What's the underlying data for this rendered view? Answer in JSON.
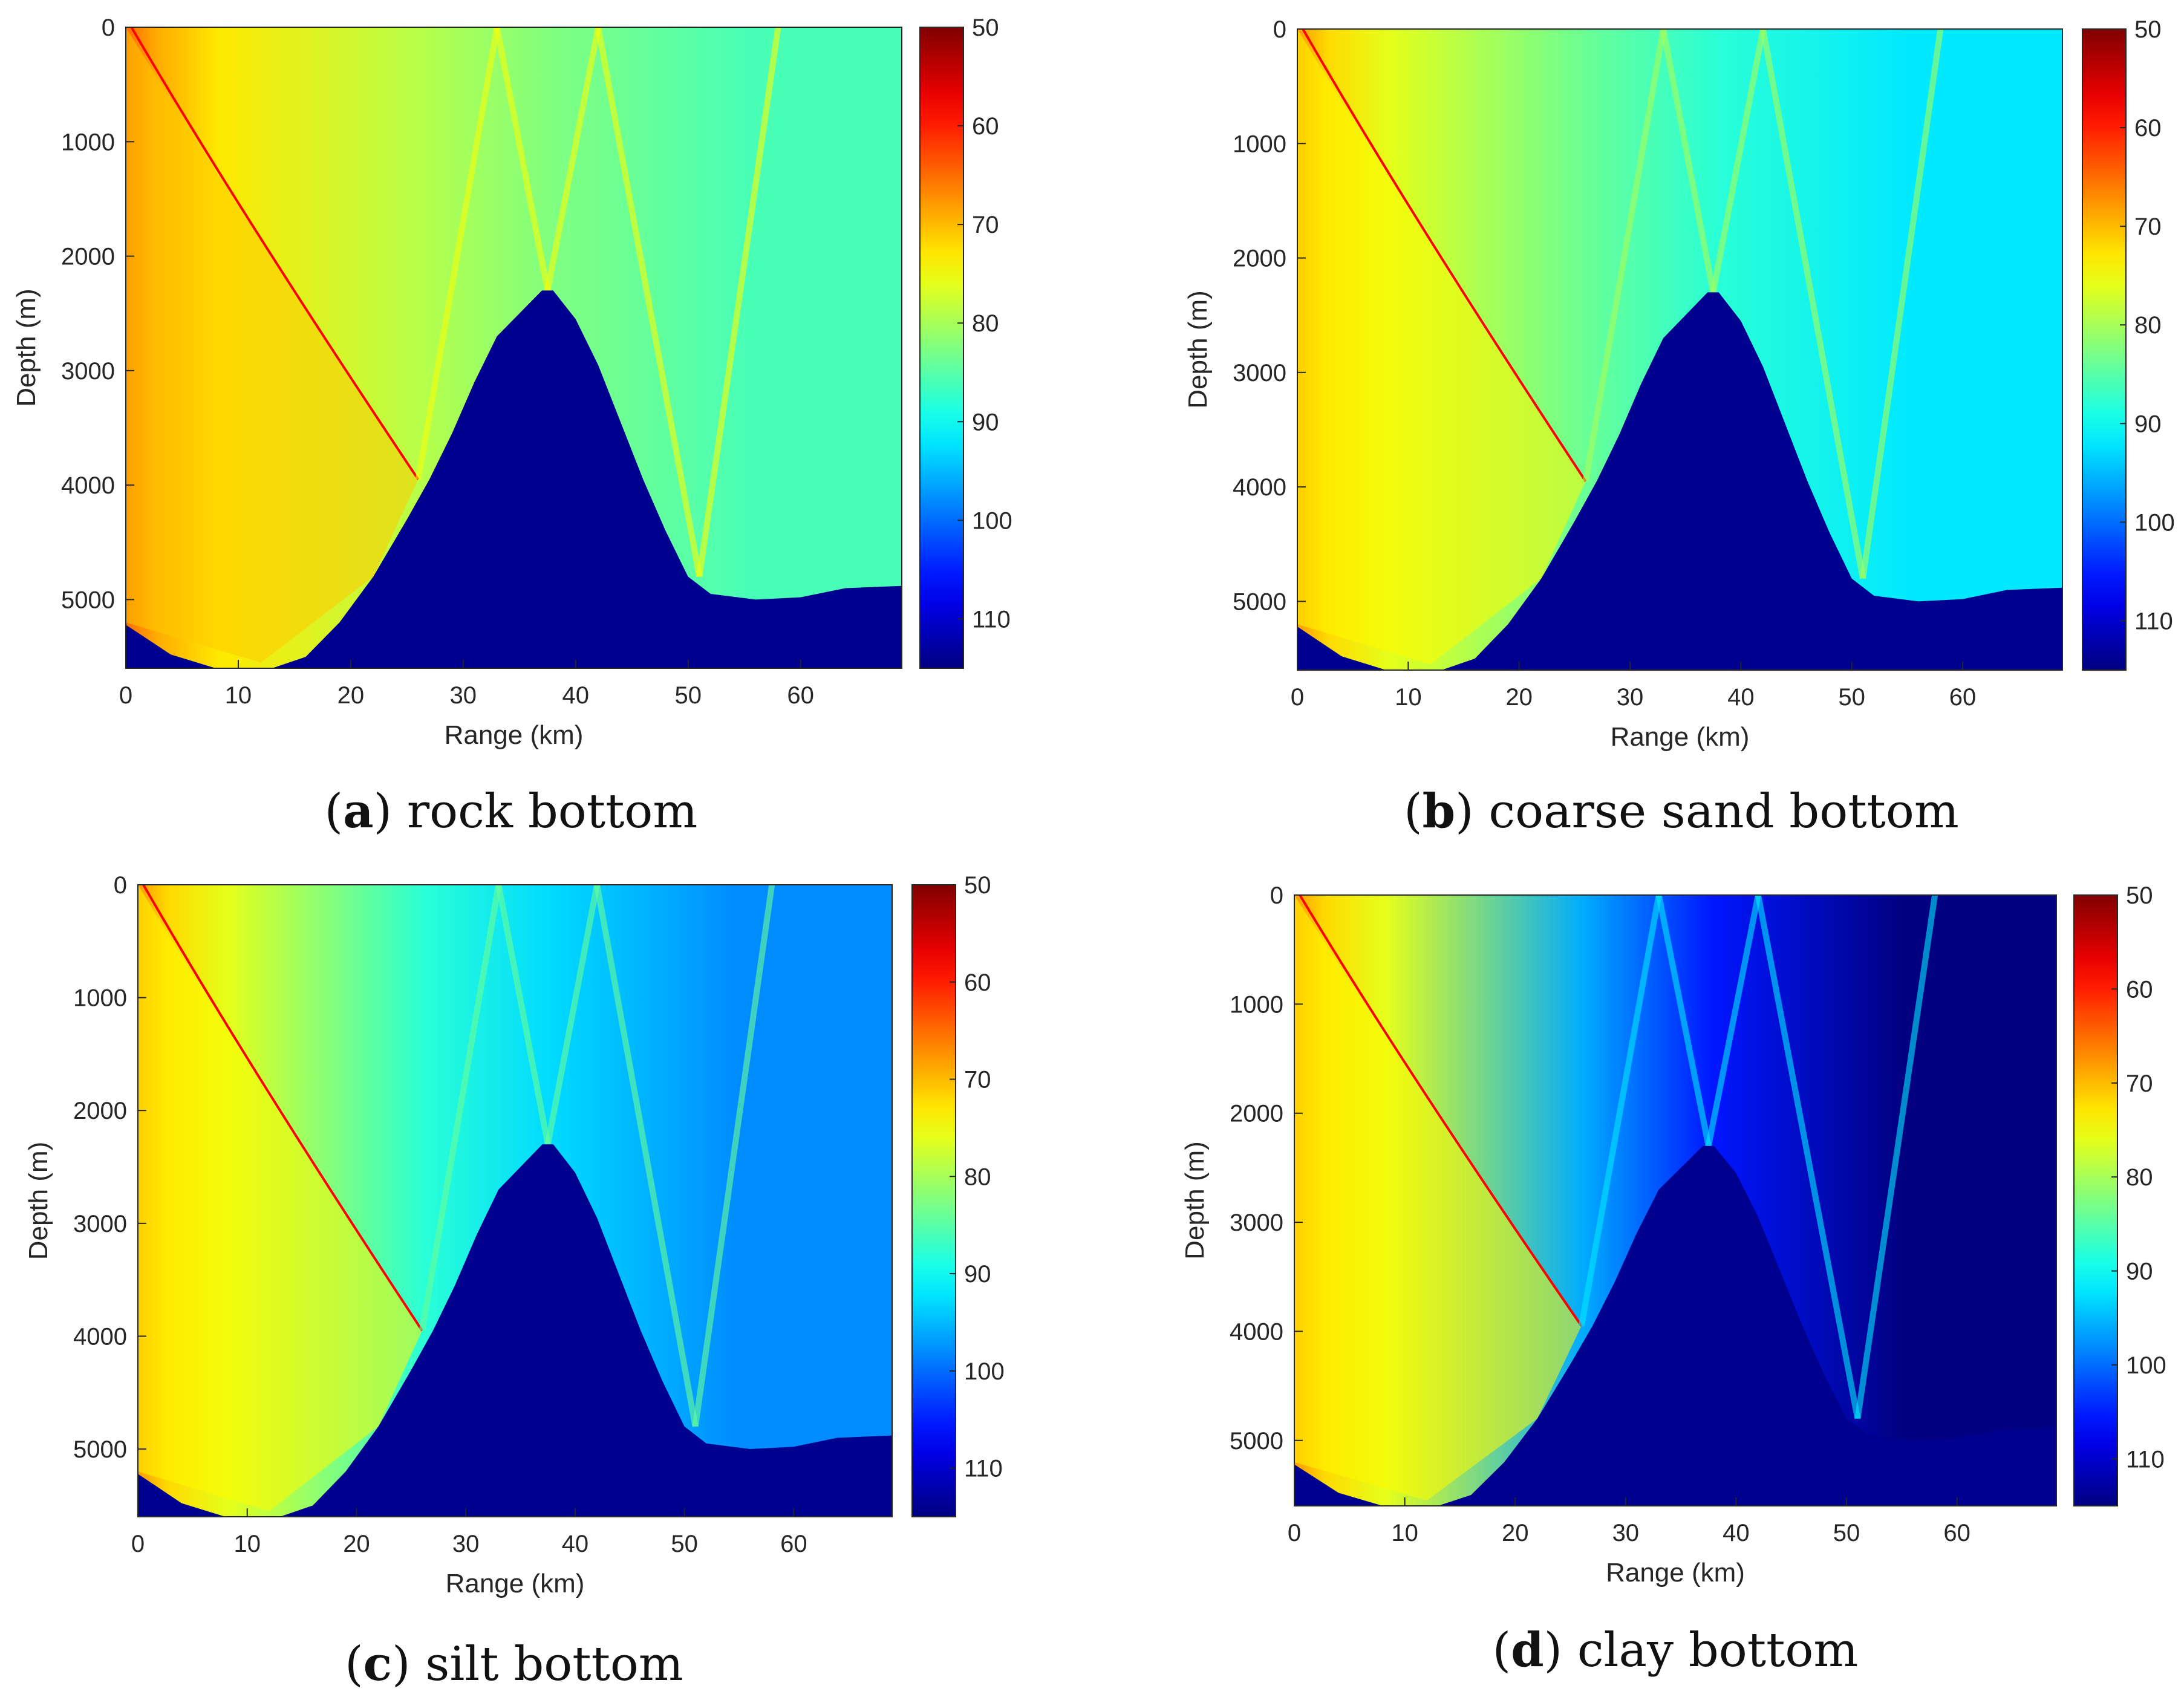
{
  "colors": {
    "background": "#ffffff",
    "seabed": "#00008F",
    "axis": "#262626",
    "colormap": "jet"
  },
  "chart_data": [
    {
      "type": "heatmap",
      "panel": "a",
      "caption_letter": "a",
      "caption_text": "rock bottom",
      "xlabel": "Range (km)",
      "ylabel": "Depth (m)",
      "xlim": [
        0,
        69
      ],
      "ylim": [
        5600,
        0
      ],
      "xticks": [
        0,
        10,
        20,
        30,
        40,
        50,
        60
      ],
      "yticks": [
        0,
        1000,
        2000,
        3000,
        4000,
        5000
      ],
      "colorbar": {
        "ticks": [
          50,
          60,
          70,
          80,
          90,
          100,
          110
        ],
        "range": [
          50,
          115
        ],
        "reversed": true
      },
      "bathymetry_km_m": [
        [
          0,
          5220
        ],
        [
          4,
          5480
        ],
        [
          8,
          5600
        ],
        [
          13,
          5600
        ],
        [
          16,
          5500
        ],
        [
          19,
          5200
        ],
        [
          22,
          4800
        ],
        [
          25,
          4300
        ],
        [
          27,
          3950
        ],
        [
          29,
          3550
        ],
        [
          31,
          3100
        ],
        [
          33,
          2700
        ],
        [
          35,
          2500
        ],
        [
          37,
          2300
        ],
        [
          38,
          2300
        ],
        [
          40,
          2550
        ],
        [
          42,
          2950
        ],
        [
          44,
          3450
        ],
        [
          46,
          3950
        ],
        [
          48,
          4400
        ],
        [
          50,
          4800
        ],
        [
          52,
          4950
        ],
        [
          56,
          5000
        ],
        [
          60,
          4980
        ],
        [
          64,
          4900
        ],
        [
          69,
          4880
        ]
      ],
      "regions": {
        "near": 73,
        "mid": 79,
        "far": 86,
        "bottom_tint": 92
      }
    },
    {
      "type": "heatmap",
      "panel": "b",
      "caption_letter": "b",
      "caption_text": "coarse sand bottom",
      "xlabel": "Range (km)",
      "ylabel": "Depth (m)",
      "xlim": [
        0,
        69
      ],
      "ylim": [
        5600,
        0
      ],
      "xticks": [
        0,
        10,
        20,
        30,
        40,
        50,
        60
      ],
      "yticks": [
        0,
        1000,
        2000,
        3000,
        4000,
        5000
      ],
      "colorbar": {
        "ticks": [
          50,
          60,
          70,
          80,
          90,
          100,
          110
        ],
        "range": [
          50,
          115
        ],
        "reversed": true
      },
      "bathymetry_km_m": [
        [
          0,
          5220
        ],
        [
          4,
          5480
        ],
        [
          8,
          5600
        ],
        [
          13,
          5600
        ],
        [
          16,
          5500
        ],
        [
          19,
          5200
        ],
        [
          22,
          4800
        ],
        [
          25,
          4300
        ],
        [
          27,
          3950
        ],
        [
          29,
          3550
        ],
        [
          31,
          3100
        ],
        [
          33,
          2700
        ],
        [
          35,
          2500
        ],
        [
          37,
          2300
        ],
        [
          38,
          2300
        ],
        [
          40,
          2550
        ],
        [
          42,
          2950
        ],
        [
          44,
          3450
        ],
        [
          46,
          3950
        ],
        [
          48,
          4400
        ],
        [
          50,
          4800
        ],
        [
          52,
          4950
        ],
        [
          56,
          5000
        ],
        [
          60,
          4980
        ],
        [
          64,
          4900
        ],
        [
          69,
          4880
        ]
      ],
      "regions": {
        "near": 76,
        "mid": 84,
        "far": 92,
        "bottom_tint": 96
      }
    },
    {
      "type": "heatmap",
      "panel": "c",
      "caption_letter": "c",
      "caption_text": "silt bottom",
      "xlabel": "Range (km)",
      "ylabel": "Depth (m)",
      "xlim": [
        0,
        69
      ],
      "ylim": [
        5600,
        0
      ],
      "xticks": [
        0,
        10,
        20,
        30,
        40,
        50,
        60
      ],
      "yticks": [
        0,
        1000,
        2000,
        3000,
        4000,
        5000
      ],
      "colorbar": {
        "ticks": [
          50,
          60,
          70,
          80,
          90,
          100,
          110
        ],
        "range": [
          50,
          115
        ],
        "reversed": true
      },
      "bathymetry_km_m": [
        [
          0,
          5220
        ],
        [
          4,
          5480
        ],
        [
          8,
          5600
        ],
        [
          13,
          5600
        ],
        [
          16,
          5500
        ],
        [
          19,
          5200
        ],
        [
          22,
          4800
        ],
        [
          25,
          4300
        ],
        [
          27,
          3950
        ],
        [
          29,
          3550
        ],
        [
          31,
          3100
        ],
        [
          33,
          2700
        ],
        [
          35,
          2500
        ],
        [
          37,
          2300
        ],
        [
          38,
          2300
        ],
        [
          40,
          2550
        ],
        [
          42,
          2950
        ],
        [
          44,
          3450
        ],
        [
          46,
          3950
        ],
        [
          48,
          4400
        ],
        [
          50,
          4800
        ],
        [
          52,
          4950
        ],
        [
          56,
          5000
        ],
        [
          60,
          4980
        ],
        [
          64,
          4900
        ],
        [
          69,
          4880
        ]
      ],
      "regions": {
        "near": 76,
        "mid": 88,
        "far": 98,
        "bottom_tint": 100
      }
    },
    {
      "type": "heatmap",
      "panel": "d",
      "caption_letter": "d",
      "caption_text": "clay bottom",
      "xlabel": "Range (km)",
      "ylabel": "Depth (m)",
      "xlim": [
        0,
        69
      ],
      "ylim": [
        5600,
        0
      ],
      "xticks": [
        0,
        10,
        20,
        30,
        40,
        50,
        60
      ],
      "yticks": [
        0,
        1000,
        2000,
        3000,
        4000,
        5000
      ],
      "colorbar": {
        "ticks": [
          50,
          60,
          70,
          80,
          90,
          100,
          110
        ],
        "range": [
          50,
          115
        ],
        "reversed": true
      },
      "bathymetry_km_m": [
        [
          0,
          5220
        ],
        [
          4,
          5480
        ],
        [
          8,
          5600
        ],
        [
          13,
          5600
        ],
        [
          16,
          5500
        ],
        [
          19,
          5200
        ],
        [
          22,
          4800
        ],
        [
          25,
          4300
        ],
        [
          27,
          3950
        ],
        [
          29,
          3550
        ],
        [
          31,
          3100
        ],
        [
          33,
          2700
        ],
        [
          35,
          2500
        ],
        [
          37,
          2300
        ],
        [
          38,
          2300
        ],
        [
          40,
          2550
        ],
        [
          42,
          2950
        ],
        [
          44,
          3450
        ],
        [
          46,
          3950
        ],
        [
          48,
          4400
        ],
        [
          50,
          4800
        ],
        [
          52,
          4950
        ],
        [
          56,
          5000
        ],
        [
          60,
          4980
        ],
        [
          64,
          4900
        ],
        [
          69,
          4880
        ]
      ],
      "regions": {
        "near": 76,
        "mid": 96,
        "far": 115,
        "bottom_tint": 115
      }
    }
  ]
}
